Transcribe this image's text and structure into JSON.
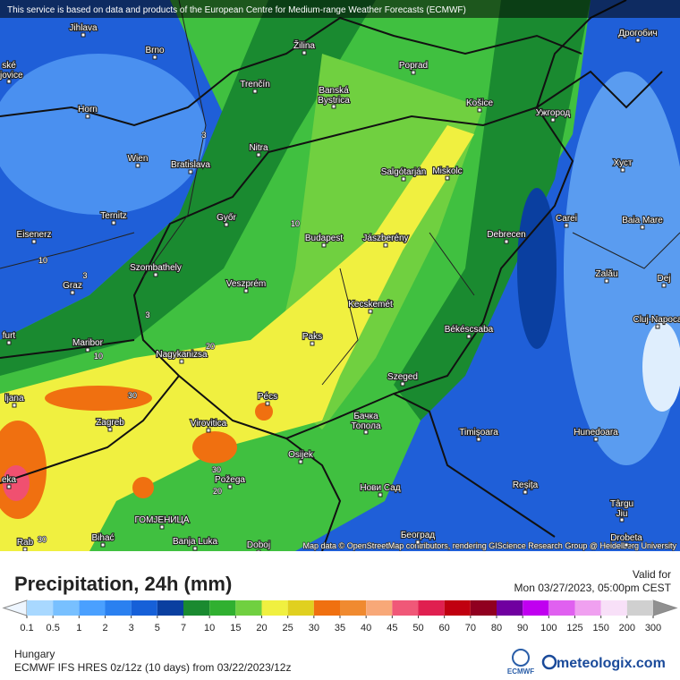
{
  "header": {
    "notice": "This service is based on data and products of the European Centre for Medium-range Weather Forecasts (ECMWF)"
  },
  "map": {
    "attribution": "Map data © OpenStreetMap contributors, rendering GIScience Research Group @ Heidelberg University",
    "places": [
      {
        "label": "Jihlava"
      },
      {
        "label": "Brno"
      },
      {
        "label": "Žilina"
      },
      {
        "label": "Poprad"
      },
      {
        "label": "Дрогобич"
      },
      {
        "label": [
          "ské",
          "ějovice"
        ]
      },
      {
        "label": "Trenčín"
      },
      {
        "label": [
          "Banská",
          "Bystrica"
        ]
      },
      {
        "label": "Košice"
      },
      {
        "label": "Ужгород"
      },
      {
        "label": "Horn"
      },
      {
        "label": "Nitra"
      },
      {
        "label": "Wien"
      },
      {
        "label": "Bratislava"
      },
      {
        "label": "Salgótarján"
      },
      {
        "label": "Miskolc"
      },
      {
        "label": "Хуст"
      },
      {
        "label": "Ternitz"
      },
      {
        "label": "Győr"
      },
      {
        "label": "Carei"
      },
      {
        "label": "Baia Mare"
      },
      {
        "label": "Eisenerz"
      },
      {
        "label": "Budapest"
      },
      {
        "label": "Jászberény"
      },
      {
        "label": "Debrecen"
      },
      {
        "label": "Szombathely"
      },
      {
        "label": "Graz"
      },
      {
        "label": "Veszprém"
      },
      {
        "label": "Zalău"
      },
      {
        "label": "Dej"
      },
      {
        "label": "Kecskemét"
      },
      {
        "label": "Cluj-Napoca"
      },
      {
        "label": "furt"
      },
      {
        "label": "Maribor"
      },
      {
        "label": "Paks"
      },
      {
        "label": "Békéscsaba"
      },
      {
        "label": "Nagykanizsa"
      },
      {
        "label": "Szeged"
      },
      {
        "label": "Pécs"
      },
      {
        "label": "ljana"
      },
      {
        "label": "Zagreb"
      },
      {
        "label": "Virovitica"
      },
      {
        "label": [
          "Бачка",
          "Топола"
        ]
      },
      {
        "label": "Timișoara"
      },
      {
        "label": "Hunedoara"
      },
      {
        "label": "Osijek"
      },
      {
        "label": "Požega"
      },
      {
        "label": "Нови Сад"
      },
      {
        "label": "Reșița"
      },
      {
        "label": [
          "Târgu",
          "Jiu"
        ]
      },
      {
        "label": "eka"
      },
      {
        "label": "ГОМЈЕНИЦА"
      },
      {
        "label": "Bihać"
      },
      {
        "label": "Banja Luka"
      },
      {
        "label": "Doboj"
      },
      {
        "label": "Београд"
      },
      {
        "label": "Drobeta"
      },
      {
        "label": "Rab"
      }
    ],
    "contour_labels": [
      "10",
      "10",
      "3",
      "3",
      "10",
      "20",
      "30",
      "30",
      "20",
      "30",
      "3"
    ]
  },
  "legend": {
    "title": "Precipitation, 24h (mm)",
    "valid_label": "Valid for",
    "valid_time": "Mon 03/27/2023, 05:00pm CEST",
    "ticks": [
      0.1,
      0.5,
      1,
      2,
      3,
      5,
      7,
      10,
      15,
      20,
      25,
      30,
      35,
      40,
      45,
      50,
      60,
      70,
      80,
      90,
      100,
      125,
      150,
      200,
      300
    ],
    "colors": [
      "#a8d8ff",
      "#78c0ff",
      "#4aa0ff",
      "#2a80f0",
      "#1660d8",
      "#0a3fa0",
      "#1a8a30",
      "#30b030",
      "#70d040",
      "#f0f040",
      "#e0d020",
      "#f07010",
      "#f08a30",
      "#f8a878",
      "#f05878",
      "#e02050",
      "#c00010",
      "#900020",
      "#7000a0",
      "#c000f0",
      "#e060f0",
      "#f0a0f0",
      "#f8e0f8",
      "#d0d0d0"
    ],
    "low_color": "#eef6ff",
    "high_color": "#909090"
  },
  "footer": {
    "region": "Hungary",
    "model": "ECMWF IFS HRES 0z/12z (10 days) from  03/22/2023/12z",
    "ecmwf": "ECMWF",
    "brand": "meteologix.com"
  }
}
